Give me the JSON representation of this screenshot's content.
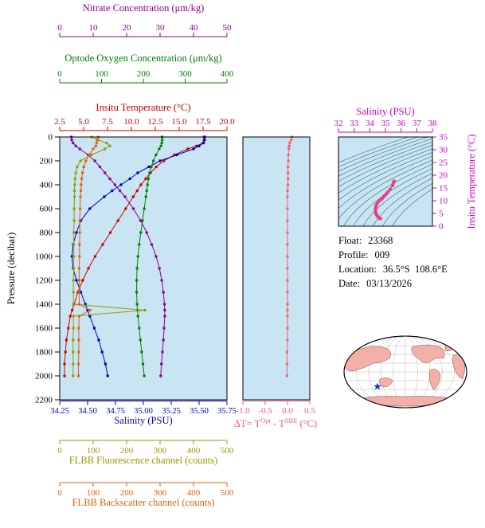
{
  "colors": {
    "nitrate": "#8b008b",
    "oxygen": "#008000",
    "temperature": "#cc0000",
    "salinity": "#0000bb",
    "fluorescence": "#999900",
    "backscatter": "#e06010",
    "delta_t": "#f4606f",
    "ts_curve": "#e8407d",
    "ts_axis": "#cc00cc",
    "pressure": "#000000",
    "plot_bg": "#c9e4f2",
    "contour": "#2f6f6f",
    "frame": "#000000",
    "map_land": "#f2b0a8",
    "map_star": "#2233bb"
  },
  "axes": {
    "nitrate": {
      "title": "Nitrate Concentration (μm/kg)",
      "ticks": [
        "0",
        "10",
        "20",
        "30",
        "40",
        "50"
      ],
      "min": 0,
      "max": 50
    },
    "oxygen": {
      "title": "Optode Oxygen Concentration (μm/kg)",
      "ticks": [
        "0",
        "100",
        "200",
        "300",
        "400"
      ],
      "min": 0,
      "max": 400
    },
    "temperature": {
      "title": "Insitu Temperature (°C)",
      "ticks": [
        "2.5",
        "5.0",
        "7.5",
        "10.0",
        "12.5",
        "15.0",
        "17.5",
        "20.0"
      ],
      "min": 2.5,
      "max": 20.0
    },
    "pressure": {
      "title": "Pressure (decibar)",
      "ticks": [
        "0",
        "200",
        "400",
        "600",
        "800",
        "1000",
        "1200",
        "1400",
        "1600",
        "1800",
        "2000",
        "2200"
      ],
      "min": 0,
      "max": 2200
    },
    "salinity": {
      "title": "Salinity (PSU)",
      "ticks": [
        "34.25",
        "34.50",
        "34.75",
        "35.00",
        "35.25",
        "35.50",
        "35.75"
      ],
      "min": 34.25,
      "max": 35.75
    },
    "fluorescence": {
      "title": "FLBB Fluorescence channel (counts)",
      "ticks": [
        "0",
        "100",
        "200",
        "300",
        "400",
        "500"
      ],
      "min": 0,
      "max": 500
    },
    "backscatter": {
      "title": "FLBB Backscatter channel (counts)",
      "ticks": [
        "0",
        "100",
        "200",
        "300",
        "400",
        "500"
      ],
      "min": 0,
      "max": 500
    },
    "delta_t": {
      "title_pre": "ΔT= T",
      "sup1": "Opt",
      "title_mid": " - T",
      "sup2": "SBE",
      "title_post": " (°C)",
      "ticks": [
        "-1.0",
        "-0.5",
        "0.0",
        "0.5"
      ],
      "min": -1.0,
      "max": 0.5
    },
    "ts_salinity": {
      "title": "Salinity (PSU)",
      "ticks": [
        "32",
        "33",
        "34",
        "35",
        "36",
        "37",
        "38"
      ],
      "min": 32,
      "max": 38
    },
    "ts_temperature": {
      "title": "Insitu Temperature (°C)",
      "ticks": [
        "0",
        "5",
        "10",
        "15",
        "20",
        "25",
        "30",
        "35"
      ],
      "min": 0,
      "max": 35
    }
  },
  "info": {
    "float_label": "Float:",
    "float_value": "23368",
    "profile_label": "Profile:",
    "profile_value": "009",
    "location_label": "Location:",
    "location_value": "36.5°S  108.6°E",
    "date_label": "Date:",
    "date_value": "03/13/2026"
  },
  "chart_data": [
    {
      "type": "line",
      "title": "Float profile curves vs pressure",
      "ylabel": "Pressure (decibar)",
      "ylim": [
        0,
        2200
      ],
      "legend_position": "none",
      "grid": false,
      "pressure": [
        0,
        25,
        50,
        75,
        100,
        150,
        200,
        250,
        300,
        350,
        400,
        450,
        500,
        600,
        700,
        800,
        900,
        1000,
        1100,
        1200,
        1300,
        1400,
        1450,
        1500,
        1600,
        1700,
        1800,
        1900,
        2000
      ],
      "series": [
        {
          "key": "temperature",
          "name": "Insitu Temperature (°C)",
          "xlim": [
            2.5,
            20.0
          ],
          "values": [
            17.6,
            17.6,
            17.5,
            16.8,
            15.9,
            14.5,
            13.4,
            12.6,
            12.0,
            11.5,
            11.0,
            10.6,
            10.2,
            9.4,
            8.6,
            7.8,
            7.0,
            6.2,
            5.5,
            4.9,
            4.4,
            4.0,
            3.8,
            3.6,
            3.4,
            3.2,
            3.1,
            3.0,
            3.0
          ]
        },
        {
          "key": "salinity",
          "name": "Salinity (PSU)",
          "xlim": [
            34.25,
            35.75
          ],
          "values": [
            35.55,
            35.55,
            35.54,
            35.5,
            35.45,
            35.3,
            35.15,
            35.05,
            34.95,
            34.88,
            34.8,
            34.72,
            34.65,
            34.52,
            34.44,
            34.4,
            34.37,
            34.36,
            34.37,
            34.4,
            34.44,
            34.48,
            34.5,
            34.52,
            34.56,
            34.6,
            34.63,
            34.66,
            34.68
          ]
        },
        {
          "key": "oxygen",
          "name": "Optode Oxygen Concentration (μm/kg)",
          "xlim": [
            0,
            400
          ],
          "values": [
            245,
            245,
            244,
            242,
            238,
            230,
            224,
            219,
            215,
            212,
            210,
            208,
            206,
            202,
            198,
            194,
            190,
            187,
            185,
            184,
            184,
            185,
            186,
            187,
            190,
            193,
            196,
            199,
            202
          ]
        },
        {
          "key": "nitrate",
          "name": "Nitrate Concentration (μm/kg)",
          "xlim": [
            0,
            50
          ],
          "values": [
            3.5,
            3.6,
            4.0,
            4.8,
            6.0,
            8.5,
            10.5,
            12.0,
            13.5,
            15.0,
            16.5,
            18.0,
            19.5,
            22.0,
            24.2,
            26.0,
            27.5,
            28.8,
            29.8,
            30.5,
            31.0,
            31.3,
            31.4,
            31.4,
            31.2,
            31.0,
            30.7,
            30.4,
            30.2
          ]
        },
        {
          "key": "fluorescence",
          "name": "FLBB Fluorescence channel (counts)",
          "xlim": [
            0,
            500
          ],
          "values": [
            95,
            115,
            140,
            150,
            135,
            95,
            62,
            52,
            48,
            46,
            45,
            44,
            44,
            43,
            43,
            42,
            42,
            42,
            42,
            41,
            41,
            41,
            255,
            41,
            41,
            40,
            40,
            40,
            40
          ]
        },
        {
          "key": "backscatter",
          "name": "FLBB Backscatter channel (counts)",
          "xlim": [
            0,
            500
          ],
          "values": [
            115,
            112,
            110,
            108,
            100,
            88,
            78,
            72,
            68,
            66,
            64,
            63,
            62,
            61,
            60,
            60,
            59,
            59,
            58,
            58,
            58,
            58,
            90,
            58,
            57,
            57,
            57,
            56,
            56
          ]
        }
      ]
    },
    {
      "type": "line",
      "title": "ΔT = T^Opt - T^SBE (°C)",
      "xlim": [
        -1.0,
        0.5
      ],
      "ylim": [
        0,
        2200
      ],
      "pressure": [
        0,
        25,
        50,
        75,
        100,
        150,
        200,
        250,
        300,
        350,
        400,
        450,
        500,
        600,
        700,
        800,
        900,
        1000,
        1100,
        1200,
        1300,
        1400,
        1450,
        1500,
        1600,
        1700,
        1800,
        1900,
        2000
      ],
      "values": [
        0.1,
        0.08,
        0.05,
        0.04,
        0.03,
        0.02,
        0.02,
        0.01,
        0.01,
        0.01,
        0.01,
        0.0,
        0.0,
        0.0,
        0.0,
        0.0,
        0.0,
        0.0,
        0.0,
        0.0,
        0.0,
        0.0,
        0.0,
        0.0,
        0.0,
        0.0,
        -0.01,
        -0.01,
        -0.01
      ]
    },
    {
      "type": "scatter",
      "title": "T-S diagram with density contours",
      "xlabel": "Salinity (PSU)",
      "ylabel": "Insitu Temperature (°C)",
      "xlim": [
        32,
        38
      ],
      "ylim": [
        0,
        35
      ],
      "salinity": [
        35.55,
        35.55,
        35.54,
        35.5,
        35.45,
        35.3,
        35.15,
        35.05,
        34.95,
        34.88,
        34.8,
        34.72,
        34.65,
        34.52,
        34.44,
        34.4,
        34.37,
        34.36,
        34.37,
        34.4,
        34.44,
        34.48,
        34.5,
        34.52,
        34.56,
        34.6,
        34.63,
        34.66,
        34.68
      ],
      "temperature": [
        17.6,
        17.6,
        17.5,
        16.8,
        15.9,
        14.5,
        13.4,
        12.6,
        12.0,
        11.5,
        11.0,
        10.6,
        10.2,
        9.4,
        8.6,
        7.8,
        7.0,
        6.2,
        5.5,
        4.9,
        4.4,
        4.0,
        3.8,
        3.6,
        3.4,
        3.2,
        3.1,
        3.0,
        3.0
      ]
    }
  ]
}
